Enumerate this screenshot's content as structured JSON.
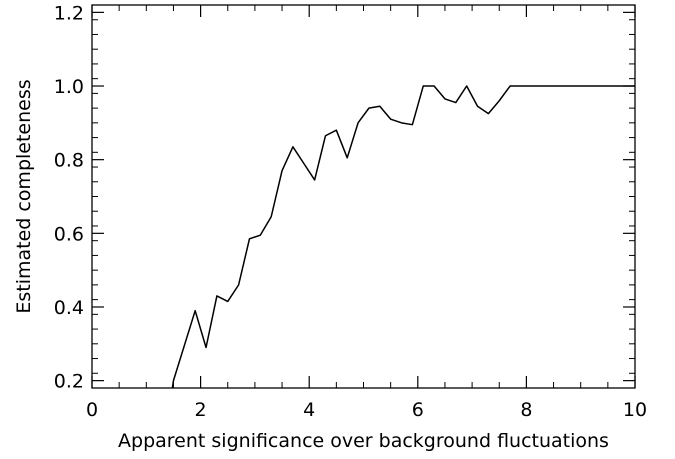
{
  "chart_data": {
    "type": "line",
    "title": "",
    "xlabel": "Apparent significance over background fluctuations",
    "ylabel": "Estimated completeness",
    "xlim": [
      0,
      10
    ],
    "ylim": [
      0.18,
      1.22
    ],
    "x_ticks": [
      0,
      2,
      4,
      6,
      8,
      10
    ],
    "x_tick_labels": [
      "0",
      "2",
      "4",
      "6",
      "8",
      "10"
    ],
    "y_ticks": [
      0.2,
      0.4,
      0.6,
      0.8,
      1.0,
      1.2
    ],
    "y_tick_labels": [
      "0.2",
      "0.4",
      "0.6",
      "0.8",
      "1.0",
      "1.2"
    ],
    "grid": false,
    "legend": "none",
    "line_color": "#000000",
    "series": [
      {
        "x": [
          1.5,
          1.9,
          2.1,
          2.3,
          2.5,
          2.7,
          2.9,
          3.1,
          3.3,
          3.5,
          3.7,
          3.9,
          4.1,
          4.3,
          4.5,
          4.7,
          4.9,
          5.1,
          5.3,
          5.5,
          5.7,
          5.9,
          6.1,
          6.3,
          6.5,
          6.7,
          6.9,
          7.1,
          7.3,
          7.5,
          7.7,
          8.0,
          8.5,
          9.0,
          9.5,
          10.0
        ],
        "y": [
          0.2,
          0.39,
          0.29,
          0.43,
          0.415,
          0.46,
          0.585,
          0.595,
          0.645,
          0.77,
          0.835,
          0.79,
          0.745,
          0.865,
          0.88,
          0.805,
          0.9,
          0.94,
          0.945,
          0.91,
          0.9,
          0.895,
          1.0,
          1.0,
          0.965,
          0.955,
          1.0,
          0.945,
          0.925,
          0.96,
          1.0,
          1.0,
          1.0,
          1.0,
          1.0,
          1.0
        ]
      }
    ]
  }
}
